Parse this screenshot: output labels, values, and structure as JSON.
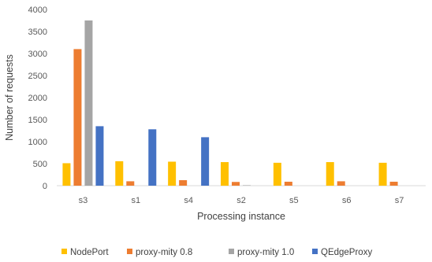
{
  "chart_data": {
    "type": "bar",
    "title": "",
    "xlabel": "Processing instance",
    "ylabel": "Number of requests",
    "categories": [
      "s3",
      "s1",
      "s4",
      "s2",
      "s5",
      "s6",
      "s7"
    ],
    "ylim": [
      0,
      4000
    ],
    "yticks": [
      0,
      500,
      1000,
      1500,
      2000,
      2500,
      3000,
      3500,
      4000
    ],
    "grid": false,
    "legend_position": "bottom",
    "series": [
      {
        "name": "NodePort",
        "color": "#FFC000",
        "values": [
          510,
          555,
          545,
          535,
          520,
          535,
          520
        ]
      },
      {
        "name": "proxy-mity 0.8",
        "color": "#ED7D31",
        "values": [
          3100,
          100,
          125,
          85,
          90,
          100,
          90
        ]
      },
      {
        "name": "proxy-mity 1.0",
        "color": "#A5A5A5",
        "values": [
          3750,
          0,
          0,
          10,
          0,
          0,
          0
        ]
      },
      {
        "name": "QEdgeProxy",
        "color": "#4472C4",
        "values": [
          1350,
          1280,
          1100,
          0,
          0,
          0,
          0
        ]
      }
    ]
  }
}
